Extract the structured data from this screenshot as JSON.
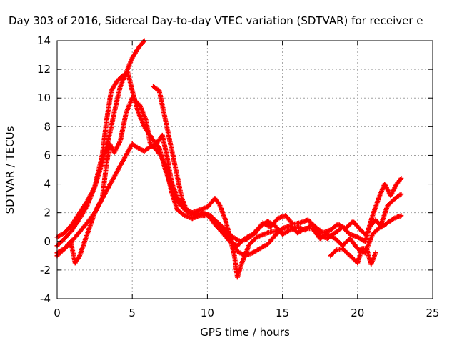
{
  "chart_data": {
    "type": "scatter",
    "title": "Day 303 of 2016, Sidereal Day-to-day VTEC variation (SDTVAR) for receiver e",
    "xlabel": "GPS time / hours",
    "ylabel": "SDTVAR / TECUs",
    "xlim": [
      0,
      25
    ],
    "ylim": [
      -4,
      14
    ],
    "xticks": [
      0,
      5,
      10,
      15,
      20,
      25
    ],
    "yticks": [
      -4,
      -2,
      0,
      2,
      4,
      6,
      8,
      10,
      12,
      14
    ],
    "grid": true,
    "marker": "+",
    "color": "#ff0000",
    "series": [
      {
        "values": [
          [
            0,
            0.3
          ],
          [
            0.5,
            0.6
          ],
          [
            1.0,
            1.2
          ],
          [
            1.5,
            2.0
          ],
          [
            2.0,
            2.8
          ],
          [
            2.5,
            3.8
          ],
          [
            3.0,
            5.5
          ],
          [
            3.5,
            7.5
          ],
          [
            3.8,
            9.0
          ],
          [
            4.2,
            10.8
          ],
          [
            4.6,
            11.8
          ],
          [
            5.0,
            12.8
          ],
          [
            5.4,
            13.5
          ],
          [
            5.8,
            14.0
          ]
        ]
      },
      {
        "values": [
          [
            0,
            -0.3
          ],
          [
            0.5,
            0.2
          ],
          [
            1.0,
            0.8
          ],
          [
            1.5,
            1.6
          ],
          [
            2.0,
            2.5
          ],
          [
            2.5,
            3.8
          ],
          [
            3.0,
            6.0
          ],
          [
            3.3,
            8.5
          ],
          [
            3.6,
            10.5
          ],
          [
            4.0,
            11.2
          ],
          [
            4.3,
            11.5
          ],
          [
            4.7,
            11.8
          ],
          [
            5.0,
            10.5
          ],
          [
            5.4,
            9.0
          ],
          [
            5.8,
            8.0
          ],
          [
            6.3,
            7.2
          ],
          [
            6.8,
            6.5
          ],
          [
            7.2,
            5.0
          ],
          [
            7.6,
            3.8
          ],
          [
            8.0,
            2.8
          ],
          [
            8.5,
            2.2
          ],
          [
            9.0,
            2.0
          ],
          [
            9.5,
            2.2
          ],
          [
            10.0,
            2.4
          ],
          [
            10.5,
            3.0
          ],
          [
            10.8,
            2.6
          ],
          [
            11.2,
            1.5
          ],
          [
            11.5,
            0.3
          ],
          [
            11.8,
            -1.0
          ],
          [
            12.0,
            -2.5
          ],
          [
            12.3,
            -1.5
          ],
          [
            12.8,
            -0.2
          ],
          [
            13.3,
            0.3
          ],
          [
            14.0,
            0.6
          ],
          [
            15.0,
            0.8
          ]
        ]
      },
      {
        "values": [
          [
            0,
            -0.8
          ],
          [
            0.5,
            -0.5
          ],
          [
            0.9,
            0.0
          ],
          [
            1.2,
            -1.5
          ],
          [
            1.5,
            -1.0
          ],
          [
            2.0,
            0.5
          ],
          [
            2.5,
            2.0
          ],
          [
            3.0,
            3.0
          ],
          [
            3.3,
            5.5
          ],
          [
            3.5,
            6.8
          ],
          [
            3.8,
            6.2
          ],
          [
            4.2,
            7.0
          ],
          [
            4.6,
            9.0
          ],
          [
            5.0,
            10.0
          ],
          [
            5.5,
            9.5
          ],
          [
            5.9,
            8.5
          ],
          [
            6.2,
            6.8
          ],
          [
            6.5,
            6.5
          ],
          [
            6.9,
            6.0
          ],
          [
            7.3,
            5.0
          ],
          [
            7.6,
            3.5
          ],
          [
            8.0,
            2.2
          ],
          [
            8.5,
            1.8
          ],
          [
            9.0,
            1.6
          ],
          [
            9.5,
            1.8
          ],
          [
            10.0,
            1.9
          ],
          [
            10.5,
            1.2
          ],
          [
            11.0,
            0.6
          ],
          [
            11.5,
            0.0
          ],
          [
            12.0,
            -0.3
          ],
          [
            12.5,
            0.2
          ],
          [
            13.0,
            0.5
          ],
          [
            13.5,
            1.0
          ],
          [
            14.0,
            1.4
          ],
          [
            14.5,
            1.1
          ],
          [
            15.0,
            0.5
          ],
          [
            15.5,
            0.8
          ],
          [
            16.0,
            1.0
          ],
          [
            16.5,
            0.8
          ],
          [
            17.0,
            1.2
          ],
          [
            17.5,
            0.4
          ],
          [
            18.0,
            0.2
          ],
          [
            18.5,
            0.6
          ],
          [
            19.0,
            1.0
          ],
          [
            19.5,
            0.5
          ],
          [
            20.0,
            0.3
          ],
          [
            20.5,
            0.0
          ],
          [
            20.8,
            1.0
          ],
          [
            21.2,
            1.5
          ],
          [
            21.6,
            1.0
          ],
          [
            22.0,
            1.3
          ],
          [
            22.4,
            1.6
          ],
          [
            22.9,
            1.8
          ]
        ]
      },
      {
        "values": [
          [
            0,
            -1.0
          ],
          [
            0.4,
            -0.6
          ],
          [
            0.8,
            -0.2
          ],
          [
            1.2,
            0.3
          ],
          [
            1.6,
            0.8
          ],
          [
            2.0,
            1.3
          ],
          [
            2.5,
            2.0
          ],
          [
            2.8,
            2.6
          ],
          [
            5.0,
            6.8
          ],
          [
            5.4,
            6.5
          ],
          [
            5.8,
            6.3
          ],
          [
            6.2,
            6.6
          ],
          [
            6.6,
            6.8
          ],
          [
            7.0,
            7.4
          ],
          [
            7.3,
            6.0
          ],
          [
            7.6,
            4.2
          ],
          [
            8.0,
            3.0
          ],
          [
            8.5,
            2.2
          ],
          [
            9.0,
            2.0
          ],
          [
            9.5,
            1.8
          ],
          [
            10.0,
            1.8
          ],
          [
            10.5,
            1.4
          ],
          [
            11.0,
            0.8
          ],
          [
            11.5,
            0.2
          ],
          [
            12.0,
            -0.7
          ],
          [
            12.5,
            -1.0
          ],
          [
            13.0,
            -0.8
          ],
          [
            13.5,
            -0.5
          ],
          [
            14.0,
            -0.2
          ],
          [
            14.5,
            0.4
          ],
          [
            15.0,
            0.9
          ],
          [
            15.5,
            1.1
          ],
          [
            16.0,
            0.6
          ],
          [
            16.5,
            0.9
          ],
          [
            17.0,
            0.9
          ],
          [
            17.5,
            0.2
          ],
          [
            18.0,
            0.5
          ],
          [
            18.5,
            0.2
          ],
          [
            19.0,
            -0.3
          ],
          [
            19.5,
            0.2
          ],
          [
            20.0,
            -0.5
          ],
          [
            20.5,
            -0.8
          ],
          [
            21.0,
            0.5
          ],
          [
            21.5,
            1.0
          ],
          [
            22.0,
            2.5
          ],
          [
            22.5,
            3.0
          ],
          [
            22.9,
            3.3
          ]
        ]
      },
      {
        "values": [
          [
            6.4,
            10.8
          ],
          [
            6.8,
            10.5
          ],
          [
            7.1,
            9.0
          ],
          [
            7.4,
            7.5
          ],
          [
            7.7,
            6.0
          ],
          [
            8.0,
            4.5
          ],
          [
            8.3,
            3.0
          ],
          [
            8.7,
            2.0
          ],
          [
            9.2,
            1.8
          ],
          [
            9.7,
            2.0
          ],
          [
            10.2,
            1.8
          ],
          [
            10.7,
            1.3
          ],
          [
            11.2,
            0.8
          ],
          [
            11.7,
            0.3
          ],
          [
            12.2,
            0.0
          ],
          [
            12.7,
            0.2
          ],
          [
            13.2,
            0.6
          ],
          [
            13.7,
            1.3
          ],
          [
            14.2,
            1.0
          ],
          [
            14.7,
            1.6
          ],
          [
            15.2,
            1.8
          ],
          [
            15.7,
            1.2
          ],
          [
            16.2,
            1.3
          ],
          [
            16.7,
            1.5
          ],
          [
            17.2,
            1.0
          ],
          [
            17.7,
            0.6
          ],
          [
            18.2,
            0.8
          ],
          [
            18.7,
            1.2
          ],
          [
            19.2,
            0.9
          ],
          [
            19.7,
            1.4
          ],
          [
            20.2,
            0.8
          ],
          [
            20.6,
            0.4
          ],
          [
            21.0,
            1.8
          ],
          [
            21.4,
            3.0
          ],
          [
            21.8,
            4.0
          ],
          [
            22.2,
            3.2
          ],
          [
            22.6,
            4.0
          ],
          [
            22.9,
            4.4
          ]
        ]
      },
      {
        "values": [
          [
            18.2,
            -1.0
          ],
          [
            18.6,
            -0.6
          ],
          [
            19.0,
            -0.5
          ],
          [
            19.5,
            -1.0
          ],
          [
            20.0,
            -1.5
          ],
          [
            20.3,
            -0.5
          ],
          [
            20.6,
            -0.5
          ],
          [
            20.9,
            -1.6
          ],
          [
            21.2,
            -0.8
          ]
        ]
      }
    ]
  }
}
